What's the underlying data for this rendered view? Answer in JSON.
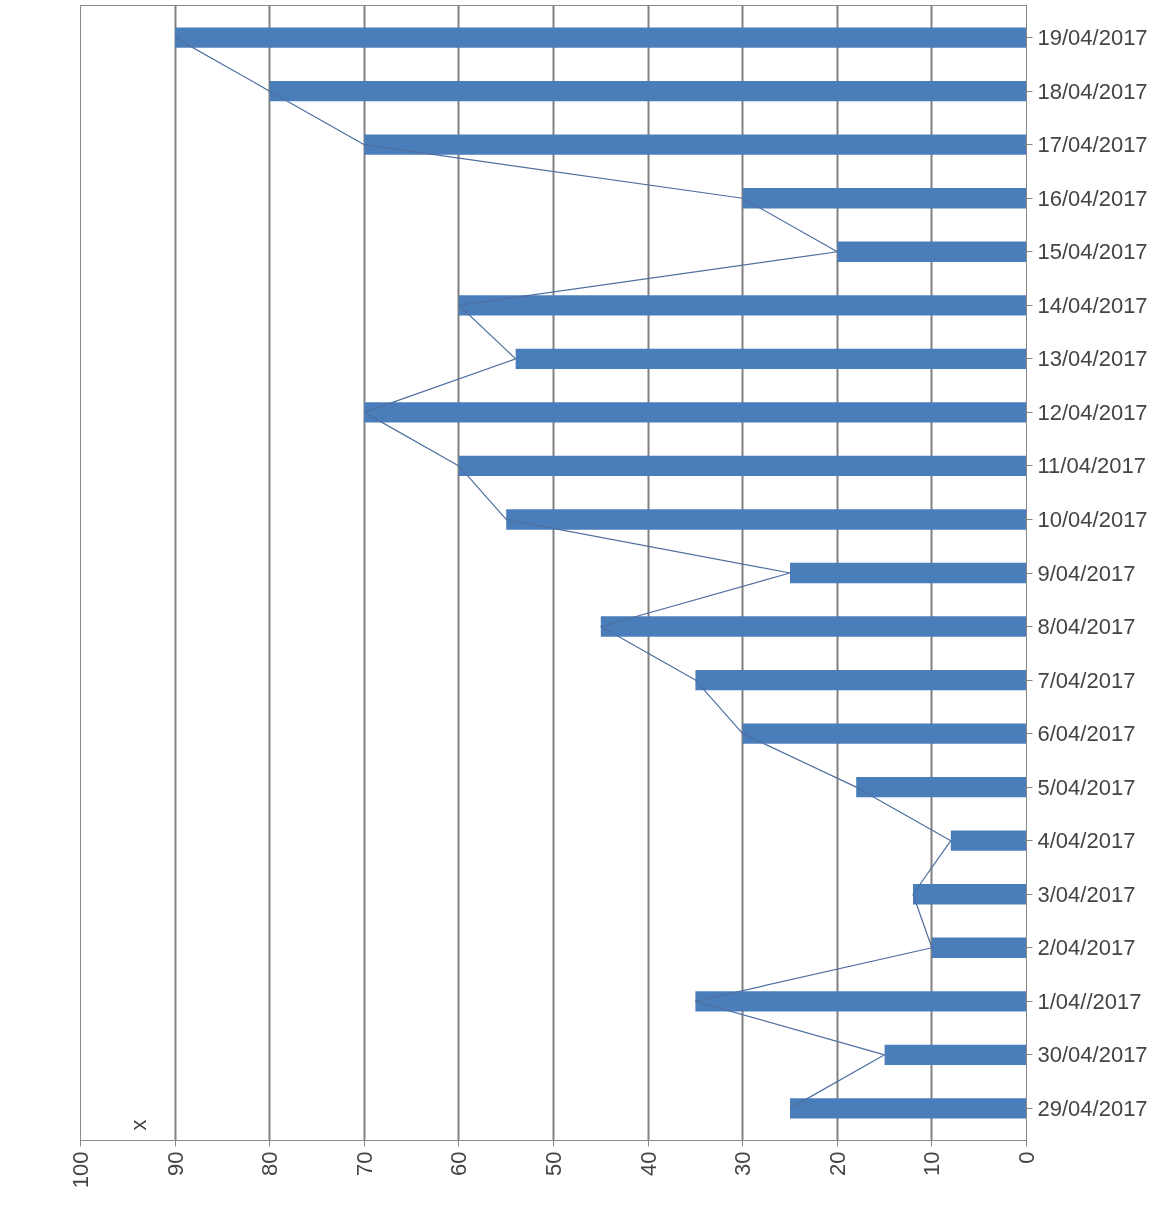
{
  "chart_data": {
    "type": "bar",
    "orientation": "horizontal",
    "categories": [
      "19/04/2017",
      "18/04/2017",
      "17/04/2017",
      "16/04/2017",
      "15/04/2017",
      "14/04/2017",
      "13/04/2017",
      "12/04/2017",
      "11/04/2017",
      "10/04/2017",
      "9/04/2017",
      "8/04/2017",
      "7/04/2017",
      "6/04/2017",
      "5/04/2017",
      "4/04/2017",
      "3/04/2017",
      "2/04/2017",
      "1/04//2017",
      "30/04/2017",
      "29/04/2017"
    ],
    "series": [
      {
        "color": "#4a7ebb",
        "values": [
          90,
          80,
          70,
          30,
          20,
          60,
          54,
          70,
          60,
          55,
          25,
          45,
          35,
          30,
          18,
          8,
          12,
          10,
          35,
          15,
          25
        ]
      },
      {
        "type": "line",
        "color": "#4f6fa0",
        "values": [
          90,
          80,
          70,
          30,
          20,
          60,
          54,
          70,
          60,
          55,
          25,
          45,
          35,
          30,
          18,
          8,
          12,
          10,
          35,
          15,
          25
        ]
      }
    ],
    "xlim": [
      100,
      0
    ],
    "xticks": [
      0,
      10,
      20,
      30,
      40,
      50,
      60,
      70,
      80,
      90,
      100
    ],
    "grid": "x",
    "annotations": [
      "x"
    ]
  }
}
